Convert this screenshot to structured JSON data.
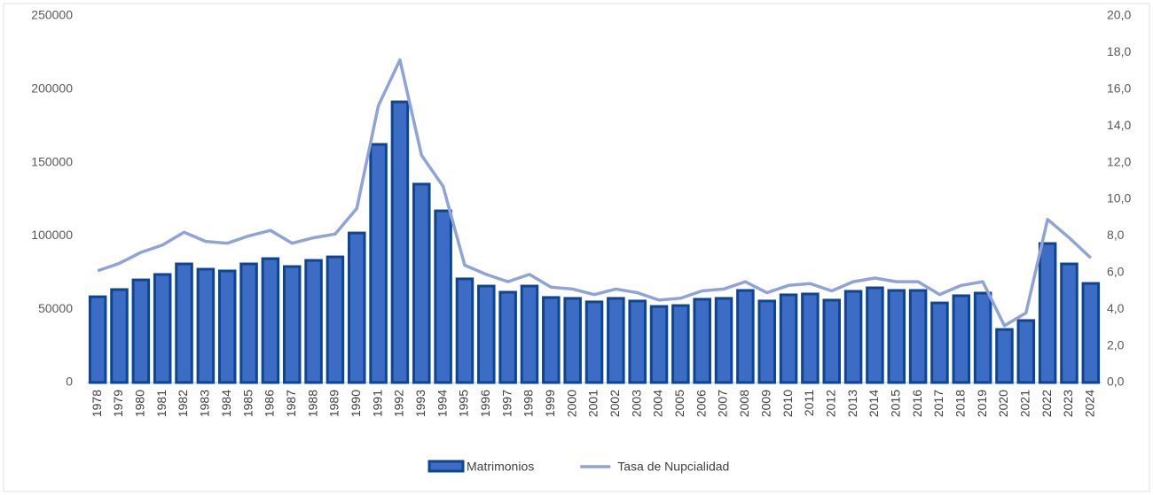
{
  "chart_data": {
    "type": "bar",
    "categories": [
      "1978",
      "1979",
      "1980",
      "1981",
      "1982",
      "1983",
      "1984",
      "1985",
      "1986",
      "1987",
      "1988",
      "1989",
      "1990",
      "1991",
      "1992",
      "1993",
      "1994",
      "1995",
      "1996",
      "1997",
      "1998",
      "1999",
      "2000",
      "2001",
      "2002",
      "2003",
      "2004",
      "2005",
      "2006",
      "2007",
      "2008",
      "2009",
      "2010",
      "2011",
      "2012",
      "2013",
      "2014",
      "2015",
      "2016",
      "2017",
      "2018",
      "2019",
      "2020",
      "2021",
      "2022",
      "2023",
      "2024"
    ],
    "series": [
      {
        "name": "Matrimonios",
        "type": "bar",
        "color": "#3d6cc4",
        "values": [
          58500,
          63400,
          70000,
          73700,
          80900,
          77300,
          76100,
          80900,
          84500,
          79100,
          83300,
          85700,
          102000,
          162400,
          191400,
          135300,
          117100,
          70700,
          65800,
          61600,
          65800,
          58000,
          57400,
          55000,
          57400,
          55600,
          51900,
          52500,
          56800,
          57400,
          62800,
          55600,
          59800,
          60400,
          56200,
          62200,
          64600,
          62800,
          62800,
          54300,
          59200,
          61000,
          36200,
          42300,
          94800,
          80900,
          67600
        ]
      },
      {
        "name": "Tasa de Nupcialidad",
        "type": "line",
        "axis": "y2",
        "color": "#8fa3d8",
        "values": [
          6.1,
          6.5,
          7.1,
          7.5,
          8.2,
          7.7,
          7.6,
          8.0,
          8.3,
          7.6,
          7.9,
          8.1,
          9.5,
          15.1,
          17.6,
          12.4,
          10.7,
          6.4,
          5.9,
          5.5,
          5.9,
          5.2,
          5.1,
          4.8,
          5.1,
          4.9,
          4.5,
          4.6,
          5.0,
          5.1,
          5.5,
          4.9,
          5.3,
          5.4,
          5.0,
          5.5,
          5.7,
          5.5,
          5.5,
          4.8,
          5.3,
          5.5,
          3.1,
          3.8,
          8.9,
          7.9,
          6.8
        ]
      }
    ],
    "ylim": [
      0,
      250000
    ],
    "yticks": [
      0,
      50000,
      100000,
      150000,
      200000,
      250000
    ],
    "y2lim": [
      0,
      20
    ],
    "y2ticks": [
      {
        "value": 0,
        "label": "0,0"
      },
      {
        "value": 2,
        "label": "2,0"
      },
      {
        "value": 4,
        "label": "4,0"
      },
      {
        "value": 6,
        "label": "6,0"
      },
      {
        "value": 8,
        "label": "8,0"
      },
      {
        "value": 10,
        "label": "10,0"
      },
      {
        "value": 12,
        "label": "12,0"
      },
      {
        "value": 14,
        "label": "14,0"
      },
      {
        "value": 16,
        "label": "16,0"
      },
      {
        "value": 18,
        "label": "18,0"
      },
      {
        "value": 20,
        "label": "20,0"
      }
    ],
    "legend": "bottom"
  }
}
